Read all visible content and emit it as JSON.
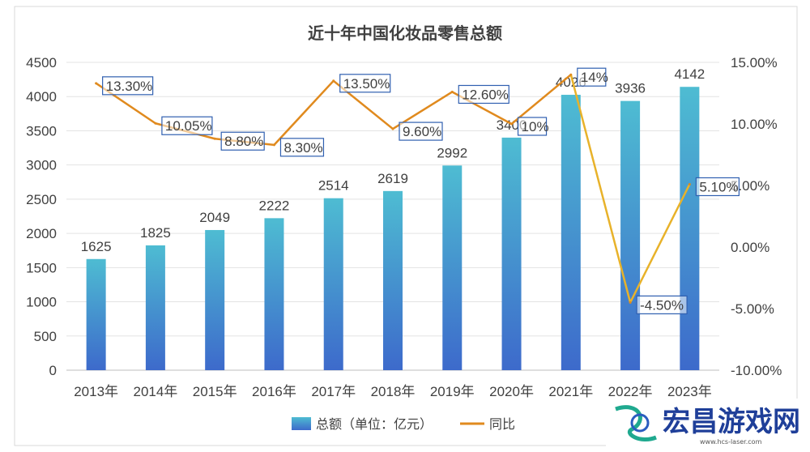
{
  "chart_data": {
    "type": "bar",
    "title": "近十年中国化妆品零售总额",
    "categories": [
      "2013年",
      "2014年",
      "2015年",
      "2016年",
      "2017年",
      "2018年",
      "2019年",
      "2020年",
      "2021年",
      "2022年",
      "2023年"
    ],
    "series": [
      {
        "name": "总额（单位：亿元）",
        "type": "bar",
        "axis": "left",
        "values": [
          1625,
          1825,
          2049,
          2222,
          2514,
          2619,
          2992,
          3400,
          4026,
          3936,
          4142
        ],
        "labels": [
          "1625",
          "1825",
          "2049",
          "2222",
          "2514",
          "2619",
          "2992",
          "3400",
          "4026",
          "3936",
          "4142"
        ]
      },
      {
        "name": "同比",
        "type": "line",
        "axis": "right",
        "values": [
          13.3,
          10.05,
          8.8,
          8.3,
          13.5,
          9.6,
          12.6,
          10,
          14,
          -4.5,
          5.1
        ],
        "labels": [
          "13.30%",
          "10.05%",
          "8.80%",
          "8.30%",
          "13.50%",
          "9.60%",
          "12.60%",
          "10%",
          "14%",
          "-4.50%",
          "5.10%"
        ]
      }
    ],
    "ylim_left": [
      0,
      4500
    ],
    "yticks_left": [
      "0",
      "500",
      "1000",
      "1500",
      "2000",
      "2500",
      "3000",
      "3500",
      "4000",
      "4500"
    ],
    "ylim_right": [
      -10,
      15
    ],
    "yticks_right": [
      "-10.00%",
      "-5.00%",
      "0.00%",
      "5.00%",
      "10.00%",
      "15.00%"
    ],
    "grid": true,
    "legend_position": "bottom",
    "colors": {
      "bar_top": "#4db8d0",
      "bar_bottom": "#3f6fcf",
      "line": "#e08a1e",
      "line_after": "#e8b22a",
      "label_border": "#2f5fb0"
    }
  },
  "watermark": {
    "brand": "宏昌游戏网",
    "sub": "www.hcs-laser.com"
  }
}
